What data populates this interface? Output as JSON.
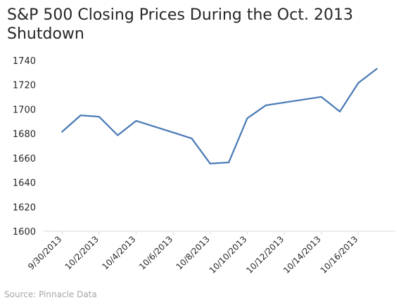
{
  "chart_data": {
    "type": "line",
    "title": "S&P 500 Closing Prices During the Oct. 2013 Shutdown",
    "source": "Source: Pinnacle Data",
    "xlabel": "",
    "ylabel": "",
    "ylim": [
      1600,
      1740
    ],
    "yticks": [
      1600,
      1620,
      1640,
      1660,
      1680,
      1700,
      1720,
      1740
    ],
    "xlim": [
      "9/29/2013",
      "10/18/2013"
    ],
    "xticks": [
      "9/30/2013",
      "10/2/2013",
      "10/4/2013",
      "10/6/2013",
      "10/8/2013",
      "10/10/2013",
      "10/12/2013",
      "10/14/2013",
      "10/16/2013"
    ],
    "grid": false,
    "legend": "none",
    "line_color": "#4a7ab5",
    "series": [
      {
        "x": [
          "9/30/2013",
          "10/1/2013",
          "10/2/2013",
          "10/3/2013",
          "10/4/2013",
          "10/7/2013",
          "10/8/2013",
          "10/9/2013",
          "10/10/2013",
          "10/11/2013",
          "10/14/2013",
          "10/15/2013",
          "10/16/2013",
          "10/17/2013"
        ],
        "values": [
          1681.55,
          1695.0,
          1693.87,
          1678.66,
          1690.5,
          1676.12,
          1655.45,
          1656.4,
          1692.56,
          1703.2,
          1710.14,
          1698.06,
          1721.54,
          1733.15
        ]
      }
    ]
  }
}
